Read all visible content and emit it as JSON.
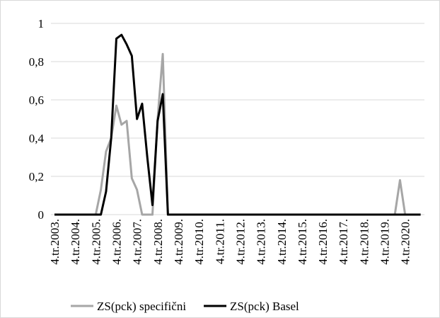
{
  "chart_data": {
    "type": "line",
    "categories": [
      "4.tr.2003.",
      null,
      null,
      null,
      "4.tr.2004.",
      null,
      null,
      null,
      "4.tr.2005.",
      null,
      null,
      null,
      "4.tr.2006.",
      null,
      null,
      null,
      "4.tr.2007.",
      null,
      null,
      null,
      "4.tr.2008.",
      null,
      null,
      null,
      "4.tr.2009.",
      null,
      null,
      null,
      "4.tr.2010.",
      null,
      null,
      null,
      "4.tr.2011.",
      null,
      null,
      null,
      "4.tr.2012.",
      null,
      null,
      null,
      "4.tr.2013.",
      null,
      null,
      null,
      "4.tr.2014.",
      null,
      null,
      null,
      "4.tr.2015.",
      null,
      null,
      null,
      "4.tr.2016.",
      null,
      null,
      null,
      "4.tr.2017.",
      null,
      null,
      null,
      "4.tr.2018.",
      null,
      null,
      null,
      "4.tr.2019.",
      null,
      null,
      null,
      "4.tr.2020.",
      null,
      null,
      null
    ],
    "series": [
      {
        "name": "ZS(pck) specifični",
        "color": "#a6a6a6",
        "values": [
          0,
          0,
          0,
          0,
          0,
          0,
          0,
          0,
          0,
          0.13,
          0.33,
          0.4,
          0.57,
          0.47,
          0.49,
          0.19,
          0.13,
          0,
          0,
          0,
          0.5,
          0.84,
          0,
          0,
          0,
          0,
          0,
          0,
          0,
          0,
          0,
          0,
          0,
          0,
          0,
          0,
          0,
          0,
          0,
          0,
          0,
          0,
          0,
          0,
          0,
          0,
          0,
          0,
          0,
          0,
          0,
          0,
          0,
          0,
          0,
          0,
          0,
          0,
          0,
          0,
          0,
          0,
          0,
          0,
          0,
          0,
          0,
          0.18,
          0,
          0,
          0,
          0
        ]
      },
      {
        "name": "ZS(pck) Basel",
        "color": "#000000",
        "values": [
          0,
          0,
          0,
          0,
          0,
          0,
          0,
          0,
          0,
          0,
          0.12,
          0.4,
          0.92,
          0.94,
          0.89,
          0.83,
          0.5,
          0.58,
          0.3,
          0.05,
          0.49,
          0.63,
          0,
          0,
          0,
          0,
          0,
          0,
          0,
          0,
          0,
          0,
          0,
          0,
          0,
          0,
          0,
          0,
          0,
          0,
          0,
          0,
          0,
          0,
          0,
          0,
          0,
          0,
          0,
          0,
          0,
          0,
          0,
          0,
          0,
          0,
          0,
          0,
          0,
          0,
          0,
          0,
          0,
          0,
          0,
          0,
          0,
          0,
          0,
          0,
          0,
          0
        ]
      }
    ],
    "ylim": [
      0,
      1
    ],
    "yticks": [
      0,
      {
        "value": 0.2,
        "label": "0,2"
      },
      {
        "value": 0.4,
        "label": "0,4"
      },
      {
        "value": 0.6,
        "label": "0,6"
      },
      {
        "value": 0.8,
        "label": "0,8"
      },
      1
    ],
    "grid": true,
    "legend": "bottom"
  }
}
